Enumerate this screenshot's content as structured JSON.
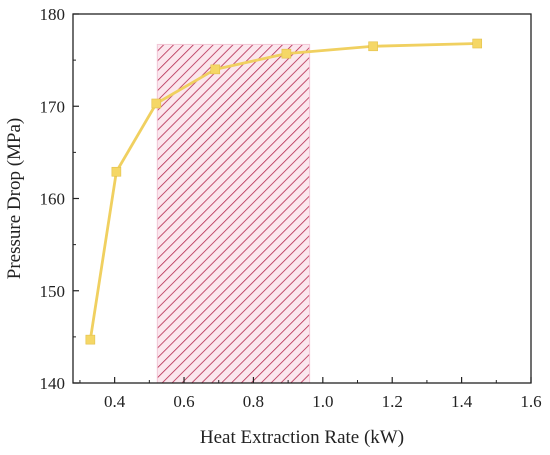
{
  "chart_data": {
    "type": "line",
    "title": "",
    "xlabel": "Heat Extraction Rate (kW)",
    "ylabel": "Pressure Drop (MPa)",
    "xlim": [
      0.28,
      1.6
    ],
    "ylim": [
      140,
      180
    ],
    "x_ticks": [
      "0.4",
      "0.6",
      "0.8",
      "1.0",
      "1.2",
      "1.4",
      "1.6"
    ],
    "y_ticks": [
      "140",
      "150",
      "160",
      "170",
      "180"
    ],
    "series": [
      {
        "x": [
          0.33,
          0.405,
          0.52,
          0.69,
          0.895,
          1.145,
          1.445
        ],
        "y": [
          144.7,
          162.9,
          170.3,
          174.0,
          175.7,
          176.5,
          176.8
        ]
      }
    ],
    "highlight_region": {
      "x": [
        0.523,
        0.962
      ],
      "y": [
        140,
        176.7
      ],
      "pattern": "diagonal-hatch"
    },
    "grid": false,
    "legend": "none",
    "colors": {
      "line": "#f0d060",
      "marker": "#f5d766",
      "hatch": "#b5294f",
      "hatch_bg": "#fbe7ee",
      "axis": "#222222"
    }
  }
}
